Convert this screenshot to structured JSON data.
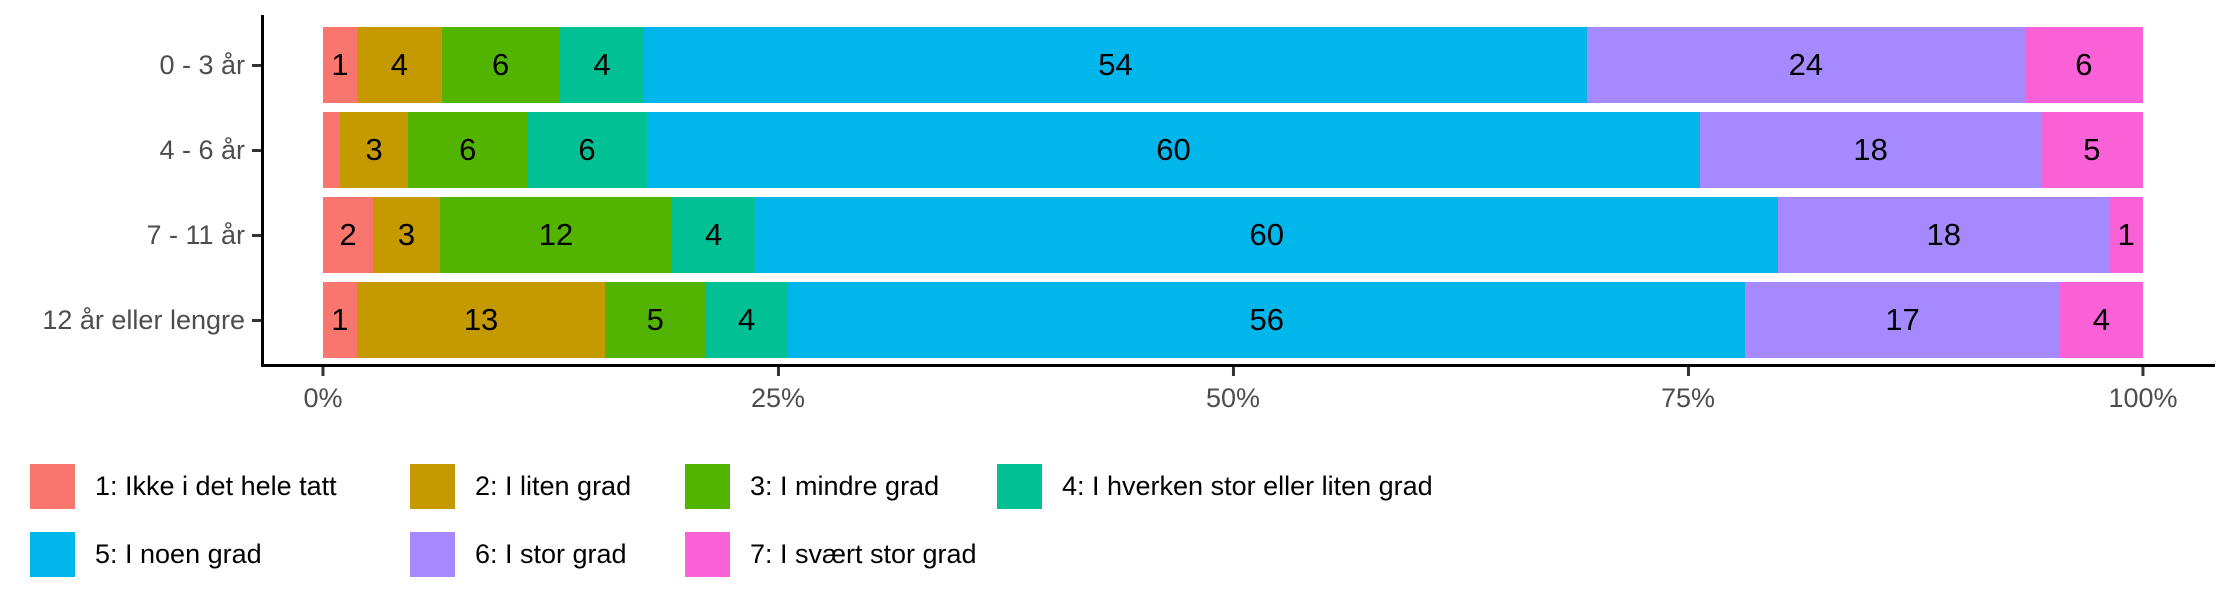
{
  "chart_data": {
    "type": "bar",
    "orientation": "horizontal-stacked",
    "title": "",
    "xlabel": "",
    "ylabel": "",
    "xlim": [
      0,
      100
    ],
    "grid": false,
    "legend_position": "bottom",
    "background_color": "#ffffff",
    "axis_line_color": "#000000",
    "axis_text_color": "#4d4d4d",
    "value_label_color": "#000000",
    "categories": [
      "0 - 3 år",
      "4 - 6 år",
      "7 - 11 år",
      "12 år eller lengre"
    ],
    "x_ticks": [
      {
        "value": 0,
        "label": "0%"
      },
      {
        "value": 25,
        "label": "25%"
      },
      {
        "value": 50,
        "label": "50%"
      },
      {
        "value": 75,
        "label": "75%"
      },
      {
        "value": 100,
        "label": "100%"
      }
    ],
    "series": [
      {
        "name": "1: Ikke i det hele tatt",
        "color": "#F8766D",
        "values": [
          1,
          1,
          2,
          1
        ],
        "labels": [
          "1",
          "",
          "2",
          "1"
        ]
      },
      {
        "name": "2: I liten grad",
        "color": "#C49A00",
        "values": [
          4,
          3,
          3,
          13
        ],
        "labels": [
          "4",
          "3",
          "3",
          "13"
        ]
      },
      {
        "name": "3: I mindre grad",
        "color": "#53B400",
        "values": [
          6,
          6,
          12,
          5
        ],
        "labels": [
          "6",
          "6",
          "12",
          "5"
        ]
      },
      {
        "name": "4: I hverken stor eller liten grad",
        "color": "#00C094",
        "values": [
          4,
          6,
          4,
          4
        ],
        "labels": [
          "4",
          "6",
          "4",
          "4"
        ]
      },
      {
        "name": "5: I noen grad",
        "color": "#00B6EB",
        "values": [
          54,
          60,
          60,
          56
        ],
        "labels": [
          "54",
          "60",
          "60",
          "56"
        ]
      },
      {
        "name": "6: I stor grad",
        "color": "#A58AFF",
        "values": [
          24,
          18,
          18,
          17
        ],
        "labels": [
          "24",
          "18",
          "18",
          "17"
        ]
      },
      {
        "name": "7: I svært stor grad",
        "color": "#FB61D7",
        "values": [
          6,
          5,
          1,
          4
        ],
        "labels": [
          "6",
          "5",
          "1",
          "4"
        ]
      }
    ],
    "legend_rows": [
      [
        0,
        1,
        2,
        3
      ],
      [
        4,
        5,
        6
      ]
    ]
  }
}
